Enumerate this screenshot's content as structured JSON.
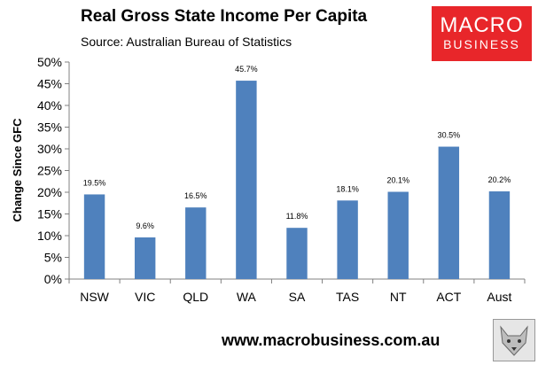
{
  "header": {
    "title": "Real Gross State Income Per Capita",
    "source": "Source: Australian Bureau of Statistics"
  },
  "logo": {
    "line1": "MACRO",
    "line2": "BUSINESS"
  },
  "footer": {
    "url": "www.macrobusiness.com.au"
  },
  "chart_data": {
    "type": "bar",
    "categories": [
      "NSW",
      "VIC",
      "QLD",
      "WA",
      "SA",
      "TAS",
      "NT",
      "ACT",
      "Aust"
    ],
    "values": [
      19.5,
      9.6,
      16.5,
      45.7,
      11.8,
      18.1,
      20.1,
      30.5,
      20.2
    ],
    "data_labels": [
      "19.5%",
      "9.6%",
      "16.5%",
      "45.7%",
      "11.8%",
      "18.1%",
      "20.1%",
      "30.5%",
      "20.2%"
    ],
    "ylabel": "Change Since GFC",
    "ylim": [
      0,
      50
    ],
    "yticks": [
      "0%",
      "5%",
      "10%",
      "15%",
      "20%",
      "25%",
      "30%",
      "35%",
      "40%",
      "45%",
      "50%"
    ],
    "bar_color": "#4f81bd",
    "grid": false,
    "legend": "none"
  }
}
